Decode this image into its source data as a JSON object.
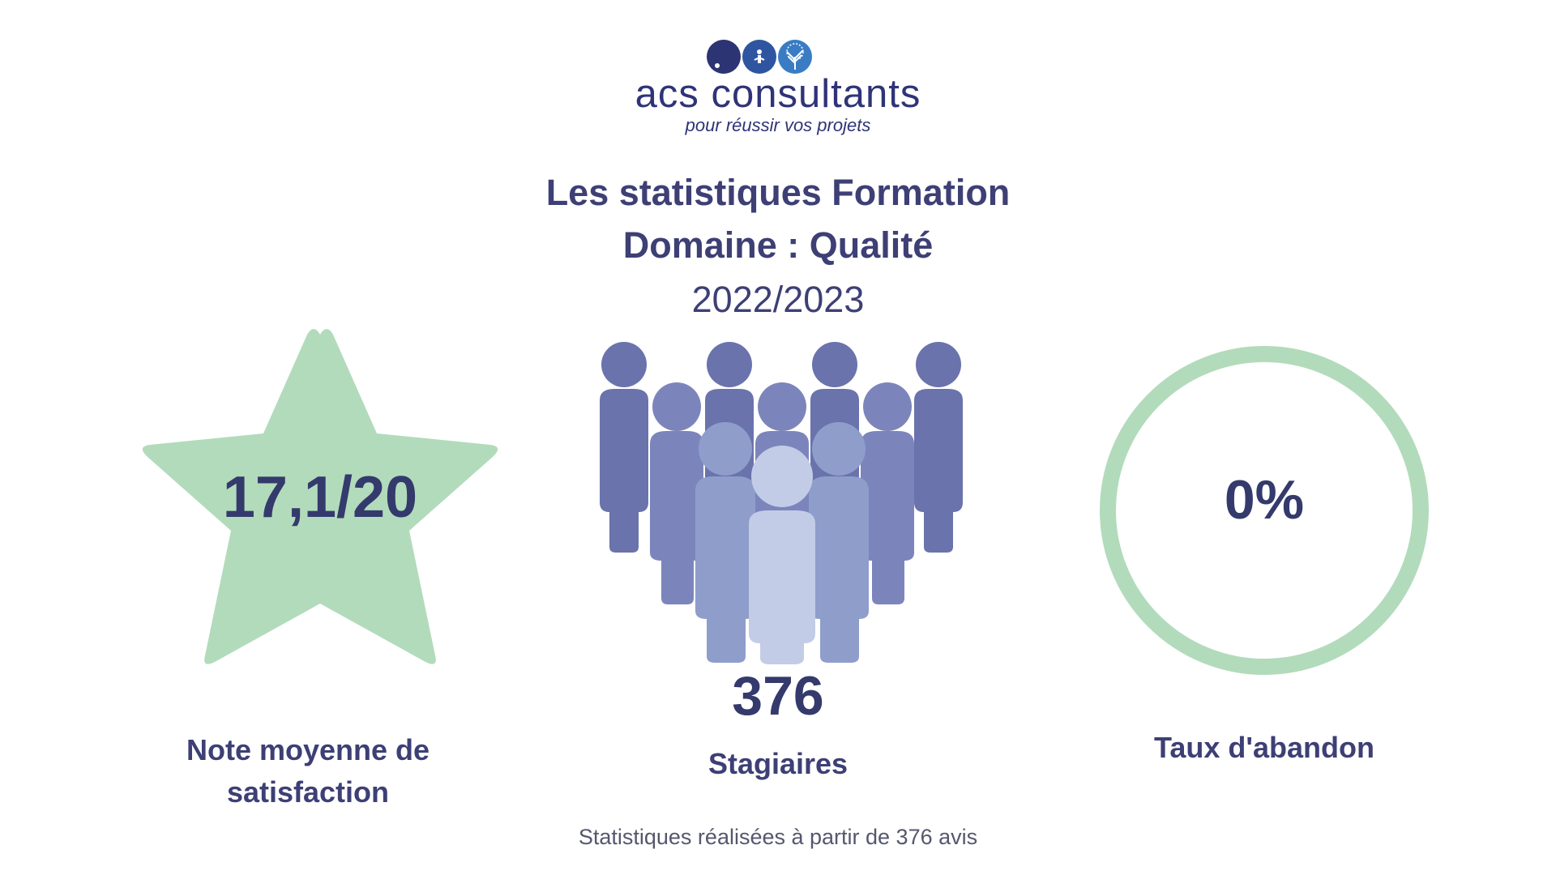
{
  "brand": {
    "name": "acs consultants",
    "tagline": "pour réussir vos projets",
    "colors": {
      "dark": "#2f3478",
      "mid": "#2f5ea8",
      "light": "#3a79c2"
    }
  },
  "title": {
    "line1": "Les statistiques Formation",
    "line2": "Domaine : Qualité",
    "year": "2022/2023"
  },
  "stats": {
    "rating": {
      "value": "17,1/20",
      "label_line1": "Note moyenne de",
      "label_line2": "satisfaction",
      "icon": "star-icon",
      "color": "#b2dbbb"
    },
    "trainees": {
      "value": "376",
      "label": "Stagiaires",
      "icon": "people-group-icon"
    },
    "dropout": {
      "value": "0%",
      "label": "Taux d'abandon",
      "icon": "ring-icon",
      "color": "#b2dbbb"
    }
  },
  "footnote": "Statistiques réalisées à partir de 376 avis"
}
